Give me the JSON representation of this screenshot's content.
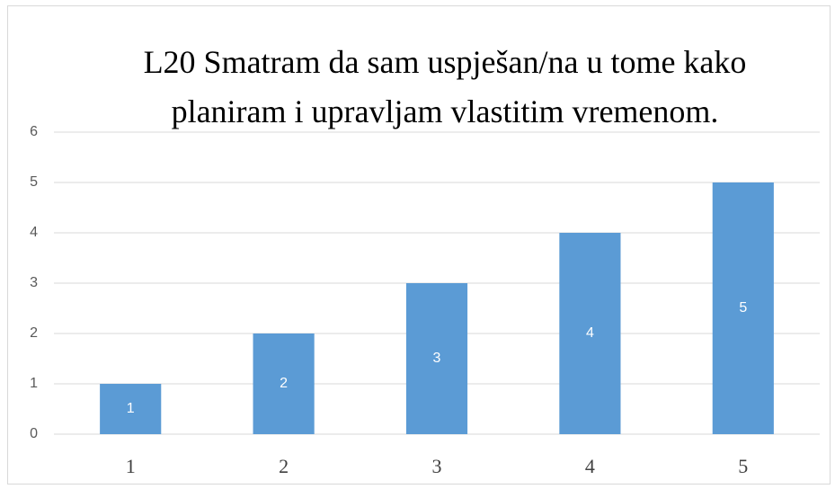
{
  "chart_data": {
    "type": "bar",
    "title": "L20 Smatram da sam uspješan/na u tome kako planiram i upravljam vlastitim vremenom.",
    "categories": [
      "1",
      "2",
      "3",
      "4",
      "5"
    ],
    "values": [
      1,
      2,
      3,
      4,
      5
    ],
    "color": "#5b9bd5",
    "ylim": [
      0,
      6
    ],
    "yticks": [
      0,
      1,
      2,
      3,
      4,
      5,
      6
    ],
    "grid": true,
    "data_labels": true
  }
}
